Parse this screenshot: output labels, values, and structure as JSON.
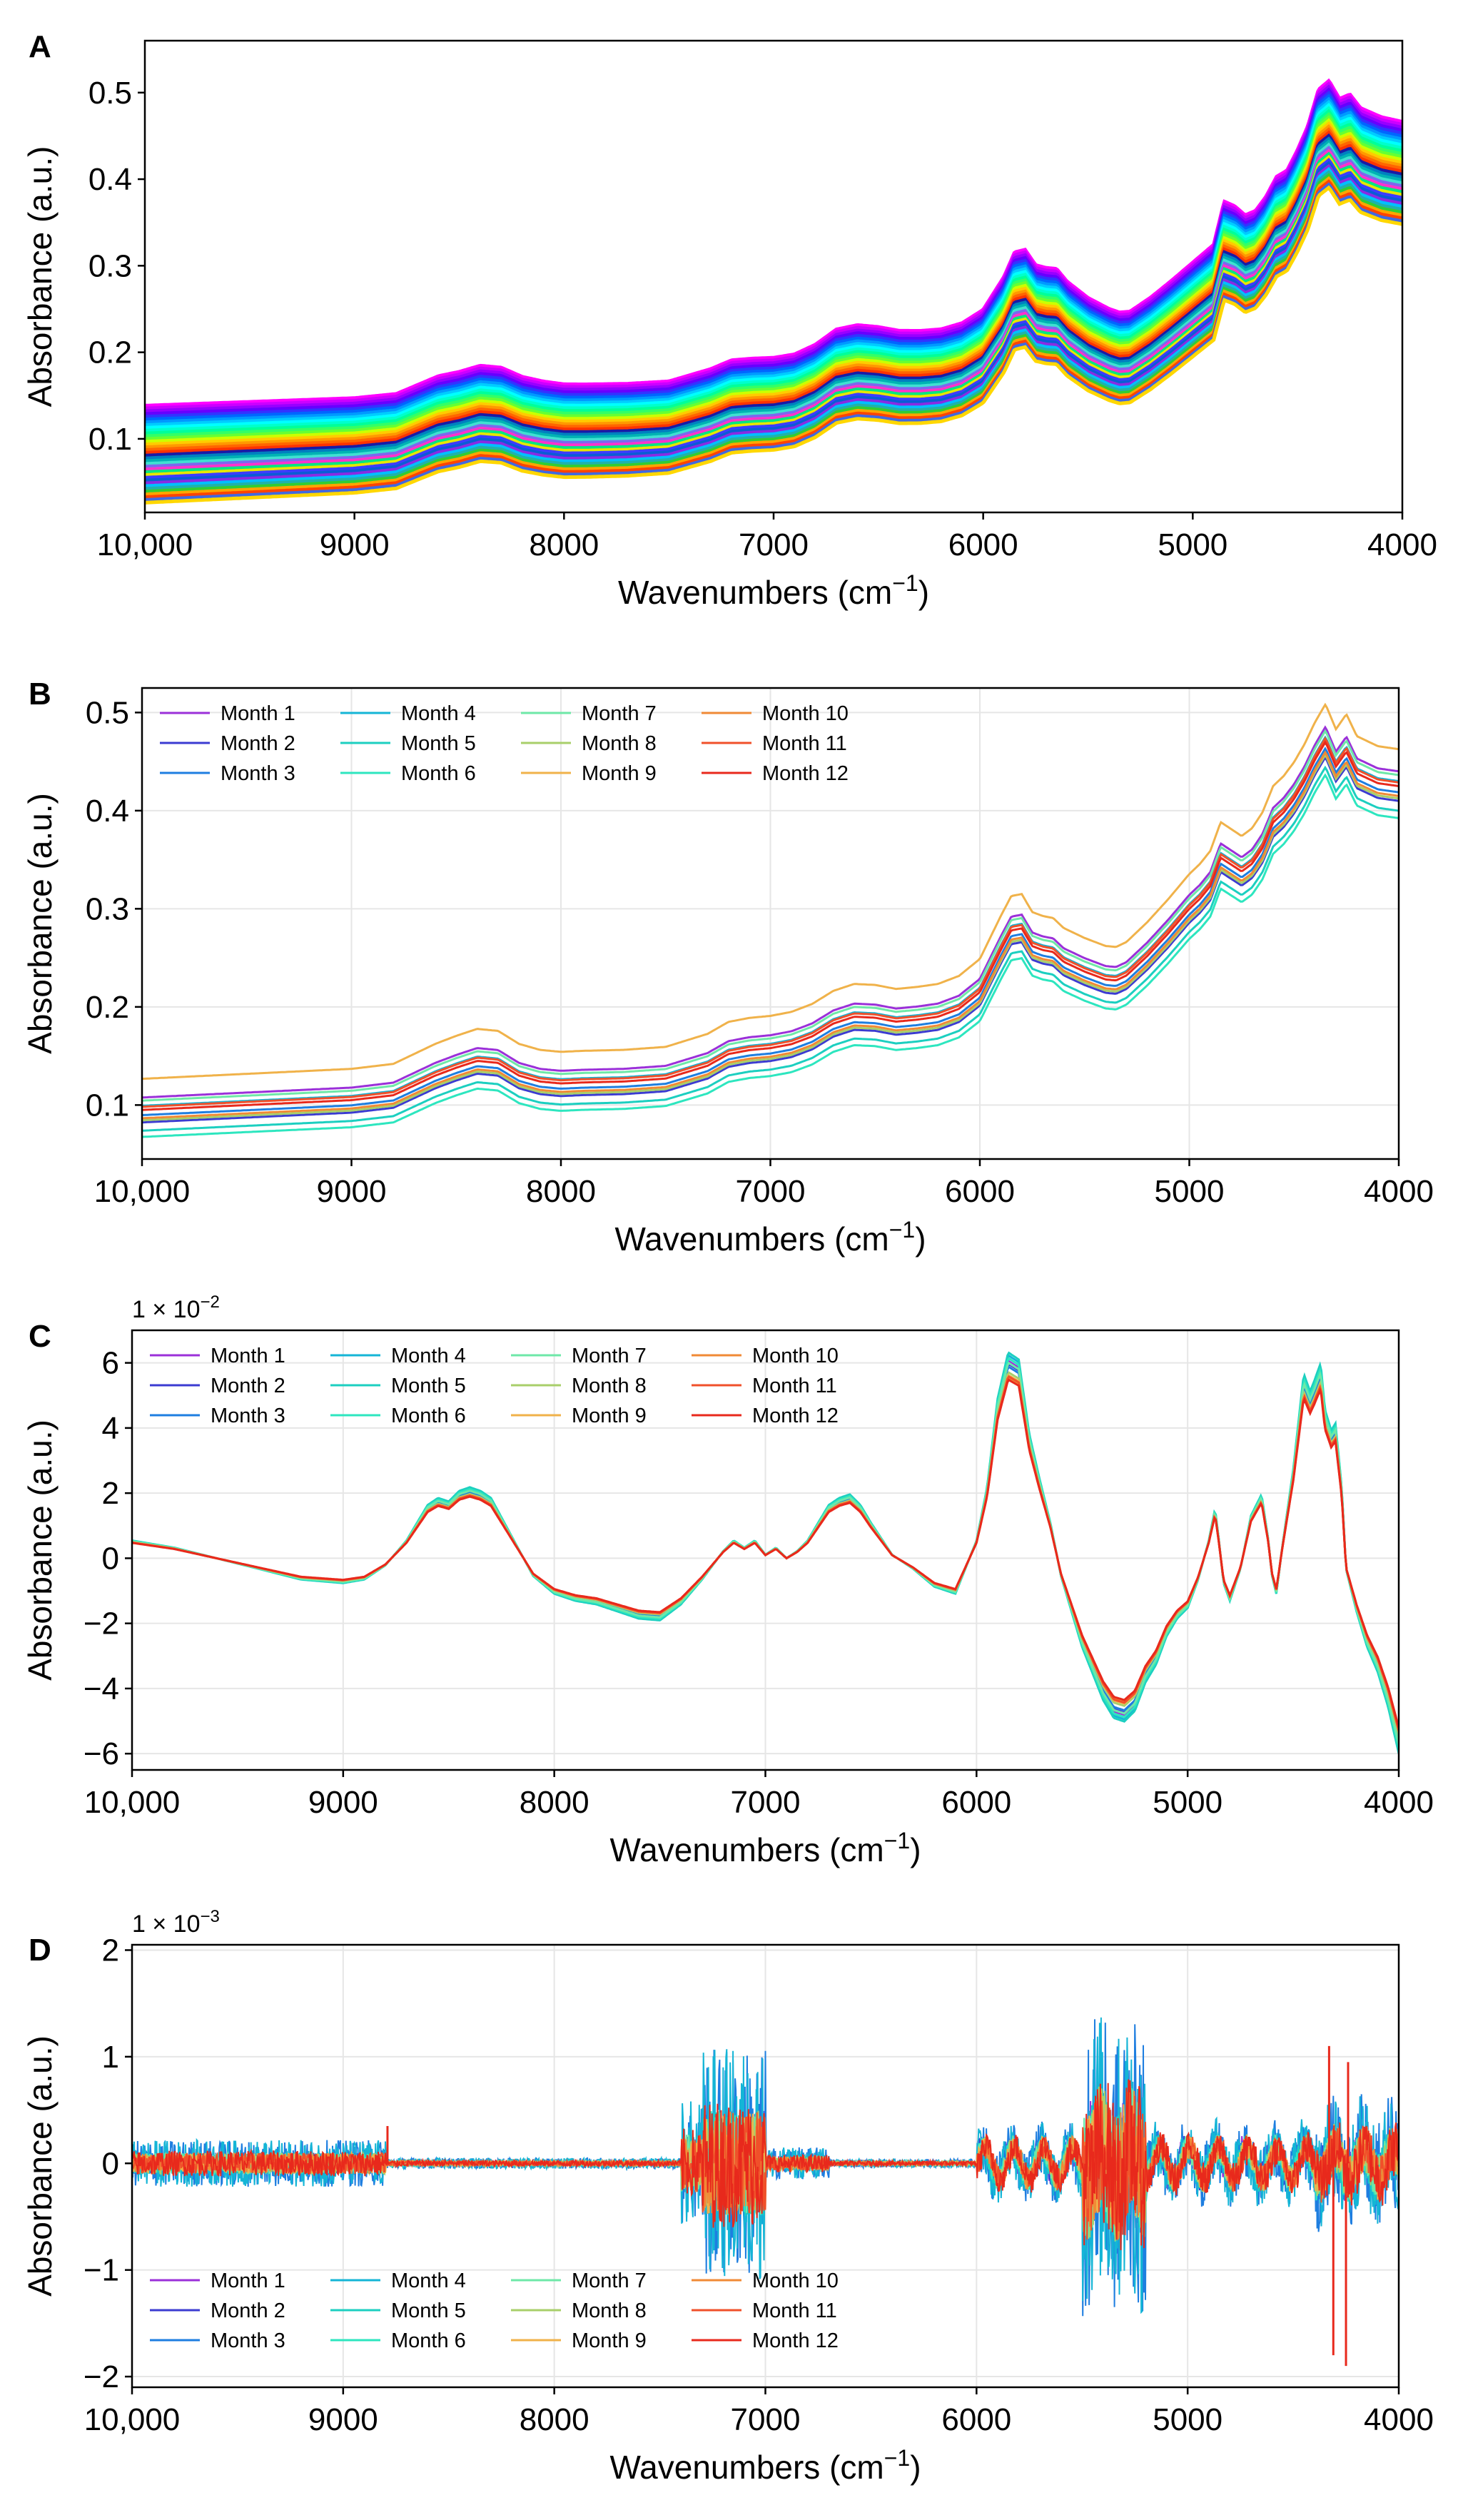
{
  "chart_data": [
    {
      "panel": "A",
      "type": "line",
      "xlabel_main": "Wavenumbers (cm",
      "xlabel_sup": "−1",
      "xlabel_end": ")",
      "ylabel": "Absorbance (a.u.)",
      "xlim": [
        10000,
        4000
      ],
      "ylim": [
        0.015,
        0.56
      ],
      "x_ticks": [
        10000,
        9000,
        8000,
        7000,
        6000,
        5000,
        4000
      ],
      "x_tick_labels": [
        "10,000",
        "9000",
        "8000",
        "7000",
        "6000",
        "5000",
        "4000"
      ],
      "y_ticks": [
        0.1,
        0.2,
        0.3,
        0.4,
        0.5
      ],
      "y_tick_labels": [
        "0.1",
        "0.2",
        "0.3",
        "0.4",
        "0.5"
      ],
      "grid": false,
      "legend": false,
      "series_count": 36,
      "colors": [
        "#ff00ff",
        "#cc00ff",
        "#9900ff",
        "#6600ff",
        "#3333ff",
        "#0066ff",
        "#0099ff",
        "#00ccff",
        "#00ffff",
        "#00ffcc",
        "#00ff99",
        "#33ff66",
        "#66ff33",
        "#ccff00",
        "#ffcc00",
        "#ff9900",
        "#ff6600",
        "#ff3300",
        "#1a1aa6",
        "#0080c0",
        "#00b3b3",
        "#40e0d0",
        "#7b68ee",
        "#ff33cc",
        "#00e680",
        "#e6e600",
        "#3d3dff",
        "#0a5cd6",
        "#8a2be2",
        "#00bfff",
        "#20b2aa",
        "#32cd32",
        "#ffa500",
        "#ff4500",
        "#4169e1",
        "#ffd700"
      ],
      "key_points": {
        "x": [
          10000,
          9500,
          9000,
          8800,
          8600,
          8500,
          8400,
          8300,
          8200,
          8100,
          8000,
          7900,
          7700,
          7500,
          7300,
          7200,
          7100,
          7000,
          6900,
          6800,
          6700,
          6600,
          6500,
          6400,
          6300,
          6200,
          6100,
          6000,
          5900,
          5850,
          5800,
          5750,
          5700,
          5650,
          5600,
          5500,
          5400,
          5350,
          5300,
          5200,
          5100,
          5000,
          4950,
          4900,
          4850,
          4800,
          4750,
          4700,
          4650,
          4600,
          4550,
          4500,
          4450,
          4400,
          4350,
          4300,
          4250,
          4200,
          4100,
          4000
        ],
        "baseline": [
          0.085,
          0.09,
          0.095,
          0.1,
          0.12,
          0.125,
          0.132,
          0.13,
          0.12,
          0.115,
          0.112,
          0.112,
          0.113,
          0.116,
          0.13,
          0.14,
          0.142,
          0.143,
          0.147,
          0.158,
          0.175,
          0.18,
          0.178,
          0.174,
          0.174,
          0.176,
          0.183,
          0.198,
          0.235,
          0.262,
          0.265,
          0.248,
          0.245,
          0.244,
          0.23,
          0.212,
          0.2,
          0.196,
          0.197,
          0.213,
          0.232,
          0.252,
          0.262,
          0.272,
          0.32,
          0.315,
          0.305,
          0.31,
          0.326,
          0.348,
          0.355,
          0.378,
          0.405,
          0.445,
          0.455,
          0.435,
          0.44,
          0.425,
          0.415,
          0.41
        ],
        "first_series_offset": 0.05,
        "last_series_offset": -0.055
      }
    },
    {
      "panel": "B",
      "type": "line",
      "xlabel_main": "Wavenumbers (cm",
      "xlabel_sup": "−1",
      "xlabel_end": ")",
      "ylabel": "Absorbance (a.u.)",
      "xlim": [
        10000,
        4000
      ],
      "ylim": [
        0.045,
        0.525
      ],
      "x_ticks": [
        10000,
        9000,
        8000,
        7000,
        6000,
        5000,
        4000
      ],
      "x_tick_labels": [
        "10,000",
        "9000",
        "8000",
        "7000",
        "6000",
        "5000",
        "4000"
      ],
      "y_ticks": [
        0.1,
        0.2,
        0.3,
        0.4,
        0.5
      ],
      "y_tick_labels": [
        "0.1",
        "0.2",
        "0.3",
        "0.4",
        "0.5"
      ],
      "grid": true,
      "legend": "top-left",
      "series": [
        {
          "name": "Month 1",
          "color": "#9b30d9",
          "offset": 0.012
        },
        {
          "name": "Month 2",
          "color": "#3b3bd1",
          "offset": -0.012
        },
        {
          "name": "Month 3",
          "color": "#1e7ee0",
          "offset": -0.005
        },
        {
          "name": "Month 4",
          "color": "#14b5d6",
          "offset": 0.004
        },
        {
          "name": "Month 5",
          "color": "#1ccfc0",
          "offset": -0.02
        },
        {
          "name": "Month 6",
          "color": "#2de6bf",
          "offset": -0.026
        },
        {
          "name": "Month 7",
          "color": "#6ee8a8",
          "offset": 0.009
        },
        {
          "name": "Month 8",
          "color": "#a8cf6a",
          "offset": -0.01
        },
        {
          "name": "Month 9",
          "color": "#f0b24a",
          "offset": 0.03
        },
        {
          "name": "Month 10",
          "color": "#f08a36",
          "offset": -0.008
        },
        {
          "name": "Month 11",
          "color": "#f0502a",
          "offset": 0.003
        },
        {
          "name": "Month 12",
          "color": "#e8291c",
          "offset": 0.0
        }
      ],
      "key_points": {
        "x": [
          10000,
          9500,
          9000,
          8800,
          8600,
          8500,
          8400,
          8300,
          8200,
          8100,
          8000,
          7900,
          7700,
          7500,
          7300,
          7200,
          7100,
          7000,
          6900,
          6800,
          6700,
          6600,
          6500,
          6400,
          6300,
          6200,
          6100,
          6000,
          5900,
          5850,
          5800,
          5750,
          5700,
          5650,
          5600,
          5500,
          5400,
          5350,
          5300,
          5200,
          5100,
          5000,
          4950,
          4900,
          4850,
          4800,
          4750,
          4700,
          4650,
          4600,
          4550,
          4500,
          4450,
          4400,
          4350,
          4300,
          4250,
          4200,
          4100,
          4000
        ],
        "baseline": [
          0.095,
          0.1,
          0.105,
          0.11,
          0.13,
          0.138,
          0.145,
          0.143,
          0.13,
          0.124,
          0.122,
          0.123,
          0.124,
          0.127,
          0.14,
          0.152,
          0.156,
          0.158,
          0.162,
          0.17,
          0.183,
          0.19,
          0.189,
          0.185,
          0.187,
          0.19,
          0.198,
          0.215,
          0.258,
          0.278,
          0.28,
          0.262,
          0.258,
          0.256,
          0.246,
          0.236,
          0.228,
          0.227,
          0.232,
          0.252,
          0.275,
          0.3,
          0.31,
          0.323,
          0.352,
          0.345,
          0.338,
          0.346,
          0.362,
          0.388,
          0.398,
          0.412,
          0.43,
          0.452,
          0.47,
          0.445,
          0.46,
          0.438,
          0.428,
          0.425
        ]
      }
    },
    {
      "panel": "C",
      "type": "line",
      "xlabel_main": "Wavenumbers (cm",
      "xlabel_sup": "−1",
      "xlabel_end": ")",
      "ylabel": "Absorbance (a.u.)",
      "scale_prefix": "1 × 10",
      "scale_exp": "−2",
      "xlim": [
        10000,
        4000
      ],
      "ylim": [
        -6.5,
        7.0
      ],
      "x_ticks": [
        10000,
        9000,
        8000,
        7000,
        6000,
        5000,
        4000
      ],
      "x_tick_labels": [
        "10,000",
        "9000",
        "8000",
        "7000",
        "6000",
        "5000",
        "4000"
      ],
      "y_ticks": [
        -6,
        -4,
        -2,
        0,
        2,
        4,
        6
      ],
      "y_tick_labels": [
        "−6",
        "−4",
        "−2",
        "0",
        "2",
        "4",
        "6"
      ],
      "grid": true,
      "legend": "top-left",
      "series_names": [
        "Month 1",
        "Month 2",
        "Month 3",
        "Month 4",
        "Month 5",
        "Month 6",
        "Month 7",
        "Month 8",
        "Month 9",
        "Month 10",
        "Month 11",
        "Month 12"
      ],
      "key_points": {
        "x": [
          10000,
          9800,
          9600,
          9400,
          9200,
          9000,
          8900,
          8800,
          8700,
          8600,
          8550,
          8500,
          8450,
          8400,
          8350,
          8300,
          8200,
          8100,
          8000,
          7900,
          7800,
          7700,
          7600,
          7500,
          7400,
          7300,
          7200,
          7150,
          7100,
          7050,
          7000,
          6950,
          6900,
          6850,
          6800,
          6700,
          6650,
          6600,
          6550,
          6500,
          6400,
          6300,
          6200,
          6100,
          6000,
          5950,
          5900,
          5850,
          5800,
          5750,
          5700,
          5650,
          5600,
          5500,
          5400,
          5350,
          5300,
          5250,
          5200,
          5150,
          5100,
          5050,
          5000,
          4950,
          4900,
          4870,
          4850,
          4830,
          4800,
          4750,
          4700,
          4650,
          4620,
          4600,
          4580,
          4550,
          4500,
          4450,
          4420,
          4400,
          4370,
          4350,
          4320,
          4300,
          4270,
          4250,
          4200,
          4150,
          4100,
          4050,
          4000
        ],
        "y": [
          0.5,
          0.3,
          0.0,
          -0.3,
          -0.6,
          -0.7,
          -0.6,
          -0.2,
          0.5,
          1.5,
          1.7,
          1.6,
          1.9,
          2.0,
          1.9,
          1.7,
          0.6,
          -0.5,
          -1.0,
          -1.2,
          -1.3,
          -1.5,
          -1.7,
          -1.75,
          -1.3,
          -0.6,
          0.2,
          0.5,
          0.3,
          0.5,
          0.1,
          0.3,
          0.0,
          0.2,
          0.5,
          1.5,
          1.7,
          1.8,
          1.5,
          1.0,
          0.1,
          -0.3,
          -0.8,
          -1.0,
          0.5,
          2.0,
          4.5,
          5.8,
          5.6,
          3.5,
          2.2,
          1.0,
          -0.5,
          -2.5,
          -4.0,
          -4.5,
          -4.6,
          -4.3,
          -3.5,
          -3.0,
          -2.2,
          -1.7,
          -1.4,
          -0.6,
          0.5,
          1.4,
          0.4,
          -0.7,
          -1.2,
          -0.3,
          1.2,
          1.8,
          0.6,
          -0.5,
          -1.0,
          0.4,
          2.5,
          5.2,
          4.7,
          5.0,
          5.5,
          4.2,
          3.6,
          3.8,
          2.0,
          -0.3,
          -1.5,
          -2.5,
          -3.2,
          -4.2,
          -5.5
        ],
        "offsets": [
          0.15,
          0.1,
          0.05,
          0.25,
          0.3,
          0.2,
          0.12,
          -0.05,
          -0.1,
          -0.15,
          -0.12,
          -0.18
        ]
      }
    },
    {
      "panel": "D",
      "type": "line",
      "xlabel_main": "Wavenumbers (cm",
      "xlabel_sup": "−1",
      "xlabel_end": ")",
      "ylabel": "Absorbance (a.u.)",
      "scale_prefix": "1 × 10",
      "scale_exp": "−3",
      "xlim": [
        10000,
        4000
      ],
      "ylim": [
        -2.1,
        2.05
      ],
      "x_ticks": [
        10000,
        9000,
        8000,
        7000,
        6000,
        5000,
        4000
      ],
      "x_tick_labels": [
        "10,000",
        "9000",
        "8000",
        "7000",
        "6000",
        "5000",
        "4000"
      ],
      "y_ticks": [
        -2,
        -1,
        0,
        1,
        2
      ],
      "y_tick_labels": [
        "−2",
        "−1",
        "0",
        "1",
        "2"
      ],
      "grid": true,
      "legend": "bottom-left",
      "series_names": [
        "Month 1",
        "Month 2",
        "Month 3",
        "Month 4",
        "Month 5",
        "Month 6",
        "Month 7",
        "Month 8",
        "Month 9",
        "Month 10",
        "Month 11",
        "Month 12"
      ],
      "noise_bands": [
        {
          "from": 10000,
          "to": 8800,
          "amp": 0.22
        },
        {
          "from": 8800,
          "to": 7400,
          "amp": 0.05
        },
        {
          "from": 7400,
          "to": 7300,
          "amp": 0.6
        },
        {
          "from": 7300,
          "to": 7000,
          "amp": 1.1
        },
        {
          "from": 7000,
          "to": 6700,
          "amp": 0.15
        },
        {
          "from": 6700,
          "to": 6000,
          "amp": 0.04
        },
        {
          "from": 6000,
          "to": 5500,
          "amp": 0.25
        },
        {
          "from": 5500,
          "to": 5200,
          "amp": 1.3
        },
        {
          "from": 5200,
          "to": 4400,
          "amp": 0.28
        },
        {
          "from": 4400,
          "to": 4000,
          "amp": 0.5
        }
      ],
      "spikes": [
        {
          "x": 8790,
          "y": 0.35
        },
        {
          "x": 4330,
          "y": 1.1
        },
        {
          "x": 4310,
          "y": -1.8
        },
        {
          "x": 4250,
          "y": -1.9
        },
        {
          "x": 4240,
          "y": 0.95
        }
      ]
    }
  ]
}
